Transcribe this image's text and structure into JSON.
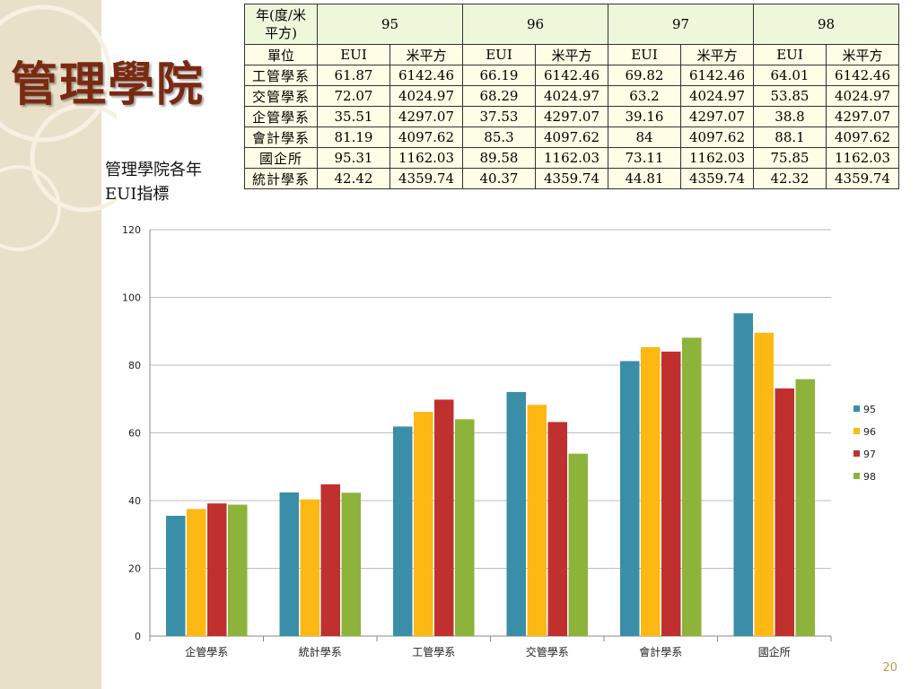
{
  "slide": {
    "title": "管理學院",
    "caption_line1": "管理學院各年",
    "caption_line2": "EUI指標",
    "page_number": "20"
  },
  "table": {
    "corner_header": "年(度/米平方)",
    "unit_header": "單位",
    "years": [
      "95",
      "96",
      "97",
      "98"
    ],
    "metric_labels": [
      "EUI",
      "米平方"
    ],
    "rows": [
      {
        "unit": "工管學系",
        "values": [
          "61.87",
          "6142.46",
          "66.19",
          "6142.46",
          "69.82",
          "6142.46",
          "64.01",
          "6142.46"
        ]
      },
      {
        "unit": "交管學系",
        "values": [
          "72.07",
          "4024.97",
          "68.29",
          "4024.97",
          "63.2",
          "4024.97",
          "53.85",
          "4024.97"
        ]
      },
      {
        "unit": "企管學系",
        "values": [
          "35.51",
          "4297.07",
          "37.53",
          "4297.07",
          "39.16",
          "4297.07",
          "38.8",
          "4297.07"
        ]
      },
      {
        "unit": "會計學系",
        "values": [
          "81.19",
          "4097.62",
          "85.3",
          "4097.62",
          "84",
          "4097.62",
          "88.1",
          "4097.62"
        ]
      },
      {
        "unit": "國企所",
        "values": [
          "95.31",
          "1162.03",
          "89.58",
          "1162.03",
          "73.11",
          "1162.03",
          "75.85",
          "1162.03"
        ]
      },
      {
        "unit": "統計學系",
        "values": [
          "42.42",
          "4359.74",
          "40.37",
          "4359.74",
          "44.81",
          "4359.74",
          "42.32",
          "4359.74"
        ]
      }
    ]
  },
  "chart_data": {
    "type": "bar",
    "categories": [
      "企管學系",
      "統計學系",
      "工管學系",
      "交管學系",
      "會計學系",
      "國企所"
    ],
    "series": [
      {
        "name": "95",
        "color": "#3a8ea8",
        "values": [
          35.51,
          42.42,
          61.87,
          72.07,
          81.19,
          95.31
        ]
      },
      {
        "name": "96",
        "color": "#fdb813",
        "values": [
          37.53,
          40.37,
          66.19,
          68.29,
          85.3,
          89.58
        ]
      },
      {
        "name": "97",
        "color": "#c0302e",
        "values": [
          39.16,
          44.81,
          69.82,
          63.2,
          84,
          73.11
        ]
      },
      {
        "name": "98",
        "color": "#8db33a",
        "values": [
          38.8,
          42.32,
          64.01,
          53.85,
          88.1,
          75.85
        ]
      }
    ],
    "ylim": [
      0,
      120
    ],
    "yticks": [
      "0",
      "20",
      "40",
      "60",
      "80",
      "100",
      "120"
    ],
    "grid": true,
    "legend_position": "right"
  }
}
